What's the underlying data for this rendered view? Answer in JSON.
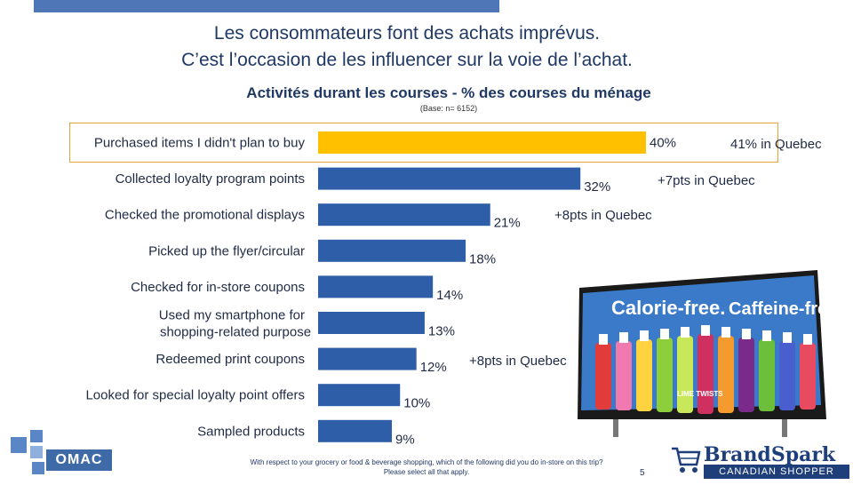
{
  "header": {
    "title_line1": "Les consommateurs font des achats imprévus.",
    "title_line2": "C’est l’occasion de les influencer sur la voie de l’achat.",
    "subtitle": "Activités durant les courses - % des courses du ménage",
    "base": "(Base: n= 6152)"
  },
  "chart_data": {
    "type": "bar",
    "orientation": "horizontal",
    "title": "Activités durant les courses - % des courses du ménage",
    "categories": [
      "Purchased items I didn't plan to buy",
      "Collected loyalty program points",
      "Checked the promotional displays",
      "Picked up the flyer/circular",
      "Checked for in-store coupons",
      "Used my smartphone for shopping-related purpose",
      "Redeemed print coupons",
      "Looked for special loyalty point offers",
      "Sampled products"
    ],
    "values": [
      40,
      32,
      21,
      18,
      14,
      13,
      12,
      10,
      9
    ],
    "value_labels": [
      "40%",
      "32%",
      "21%",
      "18%",
      "14%",
      "13%",
      "12%",
      "10%",
      "9%"
    ],
    "highlight_index": 0,
    "colors": {
      "bar": "#2e5ea8",
      "highlight_bar": "#ffc000",
      "highlight_border": "#e8a33a"
    },
    "annotations": [
      {
        "category_index": 0,
        "text": "41% in Quebec"
      },
      {
        "category_index": 1,
        "text": "+7pts in Quebec"
      },
      {
        "category_index": 2,
        "text": "+8pts in Quebec"
      },
      {
        "category_index": 6,
        "text": "+8pts in Quebec"
      }
    ],
    "xlim": [
      0,
      41
    ]
  },
  "photo": {
    "headline_part1": "Calorie-free.",
    "headline_part2": "Caffeine-free.",
    "bottle_text": "LIME TWISTS"
  },
  "footer": {
    "question_line1": "With respect to your grocery or food & beverage shopping, which of the following did you do in-store on this trip?",
    "question_line2": "Please select all that apply.",
    "page_number": "5"
  },
  "logos": {
    "omac": "OMAC",
    "brandspark_name": "BrandSpark",
    "brandspark_sub": "CANADIAN SHOPPER STUDY"
  }
}
